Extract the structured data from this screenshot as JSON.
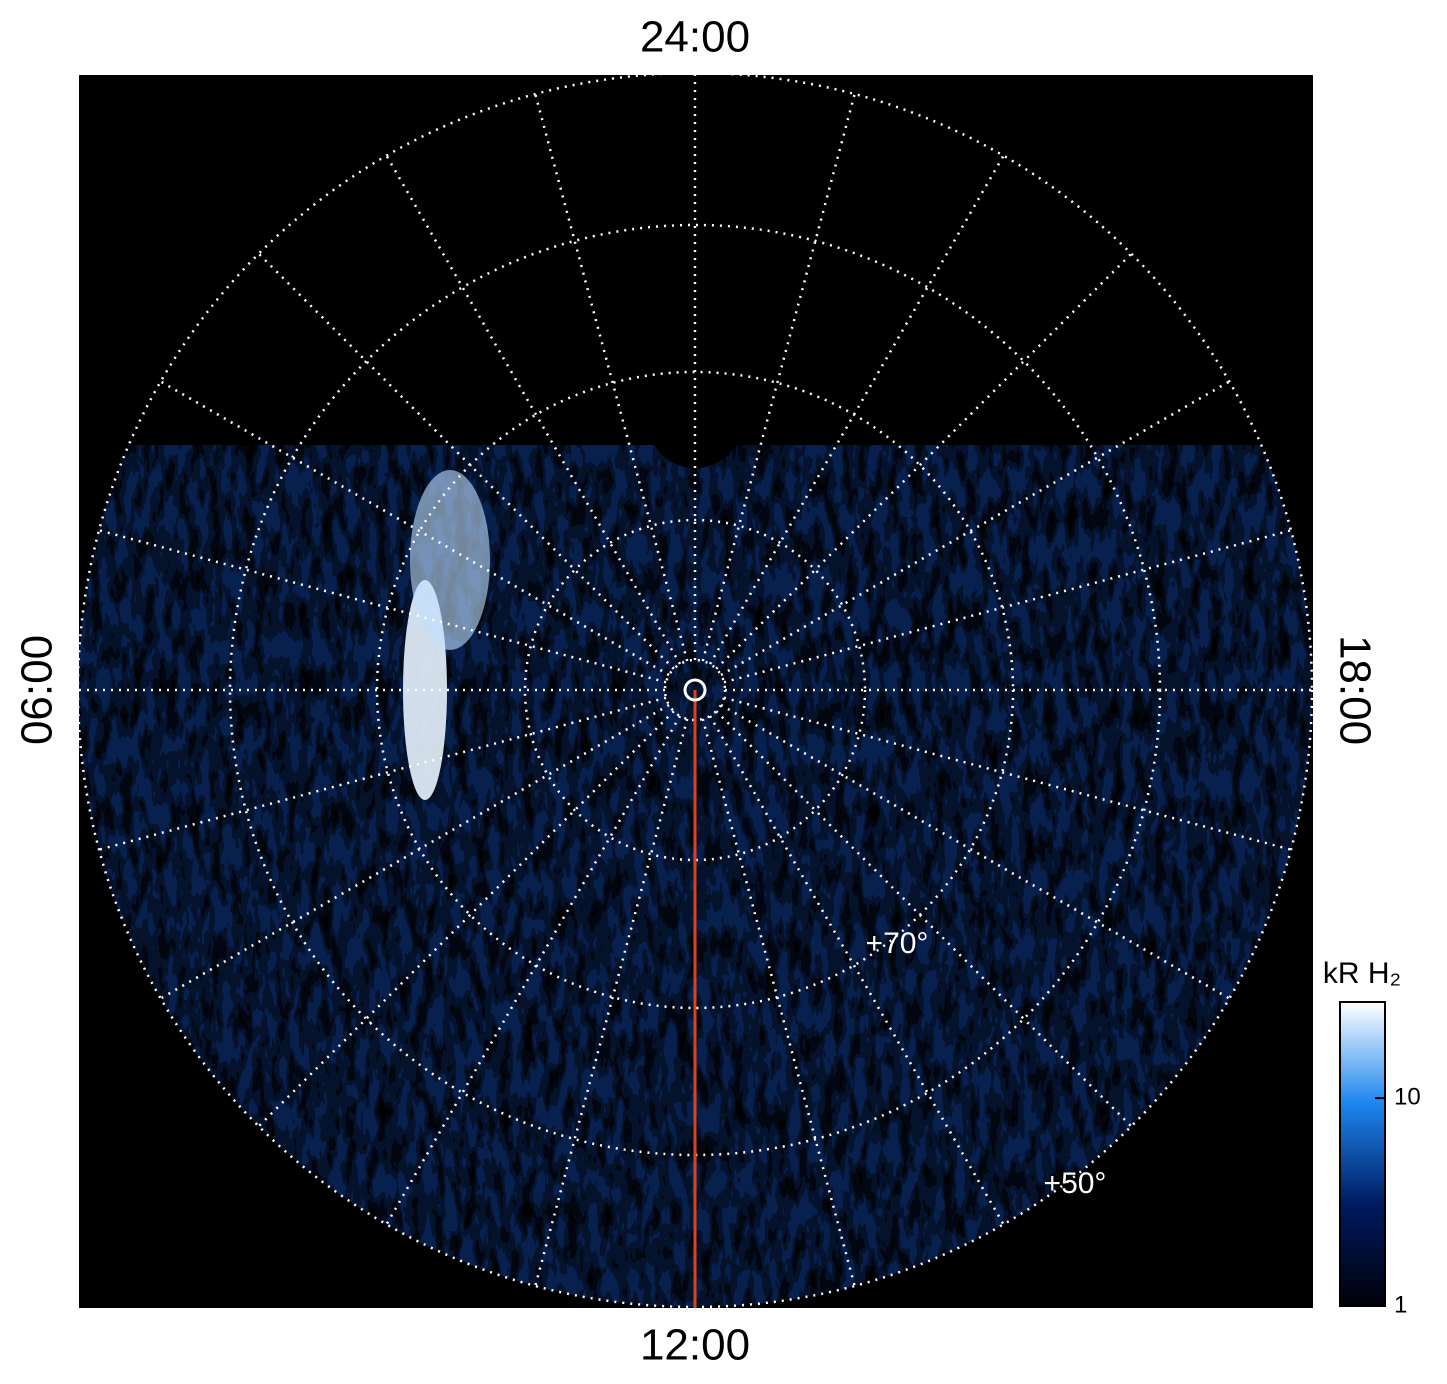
{
  "chart_data": {
    "type": "polar-map",
    "local_time_labels": [
      "24:00",
      "06:00",
      "18:00",
      "12:00"
    ],
    "latitude_labels": [
      "+70°",
      "+50°"
    ],
    "grid": true,
    "colorbar": {
      "title": "kR H₂",
      "lim": [
        1,
        29
      ],
      "ticks": [
        1,
        10
      ],
      "log": true,
      "colors": [
        "#000008",
        "#001a60",
        "#1c86ee",
        "#ffffff"
      ]
    }
  }
}
